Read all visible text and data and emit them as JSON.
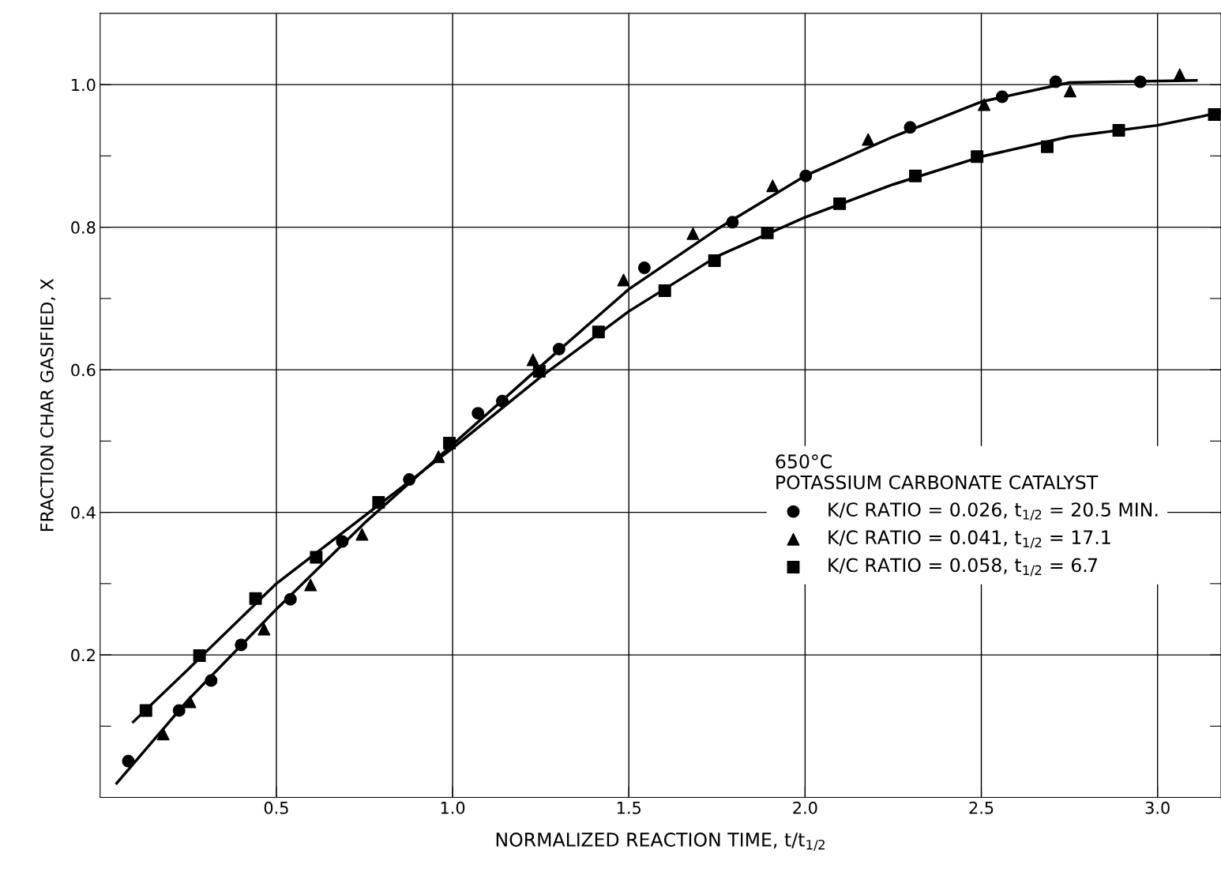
{
  "chart_data": {
    "type": "scatter",
    "xlabel": "NORMALIZED REACTION TIME, t/t$_{1/2}$",
    "ylabel": "FRACTION CHAR GASIFIED, X",
    "legend_title": "650°C\nPOTASSIUM CARBONATE CATALYST",
    "xlim": [
      0,
      3.18
    ],
    "ylim": [
      0,
      1.1
    ],
    "xticks": [
      0.5,
      {
        "value": 1,
        "label": "1.0"
      },
      1.5,
      {
        "value": 2,
        "label": "2.0"
      },
      2.5,
      {
        "value": 3,
        "label": "3.0"
      }
    ],
    "yticks": [
      {
        "value": 0.1,
        "label": null
      },
      0.2,
      {
        "value": 0.3,
        "label": null
      },
      0.4,
      {
        "value": 0.5,
        "label": null
      },
      0.6,
      {
        "value": 0.7,
        "label": null
      },
      0.8,
      {
        "value": 0.9,
        "label": null
      },
      {
        "value": 1,
        "label": "1.0"
      }
    ],
    "grid": true,
    "legend": "right",
    "series": [
      {
        "name": "K/C RATIO = 0.026, t$_{1/2}$ = 20.5 MIN.",
        "color": "#000000",
        "marker": "circle",
        "x": [
          0.08,
          0.224,
          0.315,
          0.4,
          0.54,
          0.687,
          0.877,
          1.072,
          1.141,
          1.302,
          1.544,
          1.794,
          2.002,
          2.298,
          2.559,
          2.711,
          2.951
        ],
        "values": [
          0.051,
          0.122,
          0.164,
          0.214,
          0.278,
          0.359,
          0.446,
          0.539,
          0.556,
          0.629,
          0.743,
          0.807,
          0.872,
          0.94,
          0.983,
          1.004,
          1.004
        ]
      },
      {
        "name": "K/C RATIO = 0.041, t$_{1/2}$ = 17.1",
        "color": "#000000",
        "marker": "triangle",
        "x": [
          0.179,
          0.255,
          0.465,
          0.597,
          0.743,
          0.96,
          1.228,
          1.485,
          1.682,
          1.908,
          2.179,
          2.508,
          2.752,
          3.063
        ],
        "values": [
          0.089,
          0.134,
          0.236,
          0.298,
          0.369,
          0.478,
          0.614,
          0.726,
          0.791,
          0.858,
          0.923,
          0.972,
          0.991,
          1.014
        ]
      },
      {
        "name": "K/C RATIO = 0.058, t$_{1/2}$ = 6.7",
        "color": "#000000",
        "marker": "square",
        "x": [
          0.13,
          0.282,
          0.441,
          0.613,
          0.79,
          0.991,
          1.246,
          1.414,
          1.602,
          1.743,
          1.893,
          2.098,
          2.313,
          2.488,
          2.687,
          2.89,
          3.161
        ],
        "values": [
          0.122,
          0.199,
          0.279,
          0.337,
          0.414,
          0.497,
          0.598,
          0.653,
          0.711,
          0.753,
          0.792,
          0.833,
          0.872,
          0.899,
          0.913,
          0.936,
          0.958
        ]
      },
      {
        "type": "line",
        "color": "#000000",
        "marker": "none",
        "x": [
          0.047,
          0.25,
          0.5,
          0.75,
          1.0,
          1.25,
          1.5,
          1.75,
          2.0,
          2.25,
          2.5,
          2.75,
          3.11
        ],
        "values": [
          0.02,
          0.137,
          0.264,
          0.385,
          0.495,
          0.605,
          0.713,
          0.797,
          0.872,
          0.927,
          0.976,
          1.003,
          1.006
        ]
      },
      {
        "type": "line",
        "color": "#000000",
        "marker": "none",
        "x": [
          0.094,
          0.25,
          0.5,
          0.75,
          1.0,
          1.25,
          1.5,
          1.75,
          2.0,
          2.25,
          2.5,
          2.75,
          3.0,
          3.18
        ],
        "values": [
          0.106,
          0.18,
          0.3,
          0.395,
          0.49,
          0.59,
          0.682,
          0.759,
          0.814,
          0.86,
          0.899,
          0.927,
          0.943,
          0.961
        ]
      }
    ]
  }
}
